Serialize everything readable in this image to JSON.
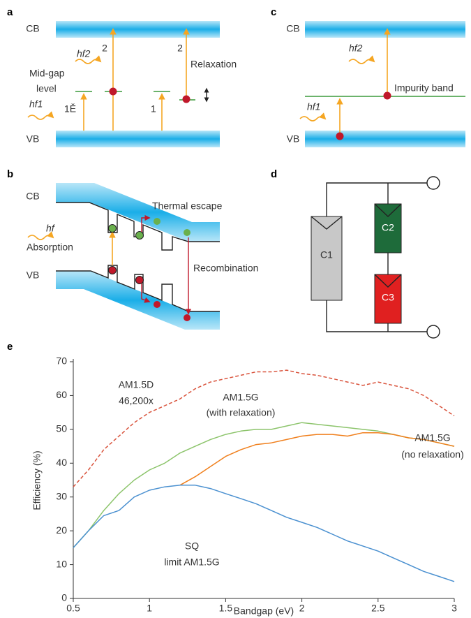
{
  "panel_a": {
    "label": "a",
    "texts": [
      "CB",
      "VB",
      "2",
      "2",
      "hf2",
      "Relaxation",
      "Mid-gap",
      "level",
      "hf1",
      "1Ě",
      "1"
    ]
  },
  "panel_b": {
    "label": "b",
    "texts": [
      "CB",
      "VB",
      "Thermal escape",
      "hf",
      "Absorption",
      "Recombination"
    ]
  },
  "panel_c": {
    "label": "c",
    "texts": [
      "CB",
      "VB",
      "hf2",
      "Impurity band",
      "hf1"
    ]
  },
  "panel_d": {
    "label": "d",
    "texts": [
      "C1",
      "C2",
      "C3"
    ]
  },
  "panel_e": {
    "label": "e"
  },
  "chart_data": {
    "type": "line",
    "x_label": "Bandgap (eV)",
    "y_label": "Efficiency (%)",
    "x": [
      0.5,
      0.6,
      0.7,
      0.8,
      0.9,
      1.0,
      1.1,
      1.2,
      1.3,
      1.4,
      1.5,
      1.6,
      1.7,
      1.8,
      1.9,
      2.0,
      2.1,
      2.2,
      2.3,
      2.4,
      2.5,
      2.6,
      2.7,
      2.8,
      2.9,
      3.0
    ],
    "series": [
      {
        "color": "#d9533c",
        "dashed": true,
        "values": [
          33,
          38,
          44,
          48,
          52,
          55,
          57,
          59,
          62,
          64,
          65,
          66,
          67,
          67,
          67.5,
          66.5,
          66,
          65,
          64,
          63,
          64,
          63,
          62,
          60,
          57,
          54
        ]
      },
      {
        "color": "#8cc46b",
        "dashed": false,
        "values": [
          15,
          20,
          26,
          31,
          35,
          38,
          40,
          43,
          45,
          47,
          48.5,
          49.5,
          50,
          50,
          51,
          52,
          51.5,
          51,
          50.5,
          50,
          49.5,
          48.5,
          47.5,
          47,
          46,
          45
        ]
      },
      {
        "color": "#f07f1c",
        "dashed": false,
        "values": [
          null,
          null,
          null,
          null,
          null,
          null,
          null,
          33.5,
          36,
          39,
          42,
          44,
          45.5,
          46,
          47,
          48,
          48.5,
          48.5,
          48,
          49,
          49,
          48.5,
          47.5,
          47,
          46,
          45
        ]
      },
      {
        "color": "#4a90d0",
        "dashed": false,
        "values": [
          15,
          20,
          24.5,
          26,
          30,
          32,
          33,
          33.5,
          33.5,
          32.5,
          31,
          29.5,
          28,
          26,
          24,
          22.5,
          21,
          19,
          17,
          15.5,
          14,
          12,
          10,
          8,
          6.5,
          5
        ]
      }
    ],
    "annotations": [
      "AM1.5D",
      "46,200x",
      "AM1.5G",
      "(with relaxation)",
      "AM1.5G",
      "(no relaxation)",
      "SQ",
      "limit AM1.5G"
    ],
    "xlim": [
      0.5,
      3
    ],
    "ylim": [
      0,
      70
    ],
    "xticks": [
      0.5,
      1,
      1.5,
      2,
      2.5,
      3
    ],
    "yticks": [
      0,
      10,
      20,
      30,
      40,
      50,
      60,
      70
    ]
  }
}
